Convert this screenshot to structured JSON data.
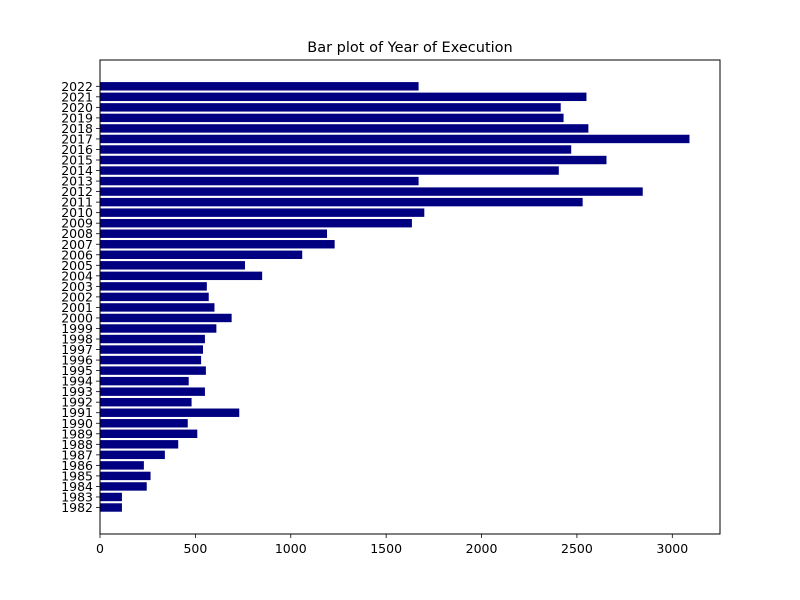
{
  "chart_data": {
    "type": "bar",
    "orientation": "horizontal",
    "title": "Bar plot of Year of Execution",
    "xlabel": "",
    "ylabel": "",
    "categories": [
      "1982",
      "1983",
      "1984",
      "1985",
      "1986",
      "1987",
      "1988",
      "1989",
      "1990",
      "1991",
      "1992",
      "1993",
      "1994",
      "1995",
      "1996",
      "1997",
      "1998",
      "1999",
      "2000",
      "2001",
      "2002",
      "2003",
      "2004",
      "2005",
      "2006",
      "2007",
      "2008",
      "2009",
      "2010",
      "2011",
      "2012",
      "2013",
      "2014",
      "2015",
      "2016",
      "2017",
      "2018",
      "2019",
      "2020",
      "2021",
      "2022"
    ],
    "values": [
      115,
      115,
      245,
      265,
      230,
      340,
      410,
      510,
      460,
      730,
      480,
      550,
      465,
      555,
      530,
      540,
      550,
      610,
      690,
      600,
      570,
      560,
      850,
      760,
      1060,
      1230,
      1190,
      1635,
      1700,
      2530,
      2845,
      1670,
      2405,
      2655,
      2470,
      3090,
      2560,
      2430,
      2415,
      2550,
      1670
    ],
    "xlim": [
      0,
      3250
    ],
    "xticks": [
      0,
      500,
      1000,
      1500,
      2000,
      2500,
      3000
    ],
    "bar_color": "#000080",
    "grid": false,
    "legend": false
  }
}
